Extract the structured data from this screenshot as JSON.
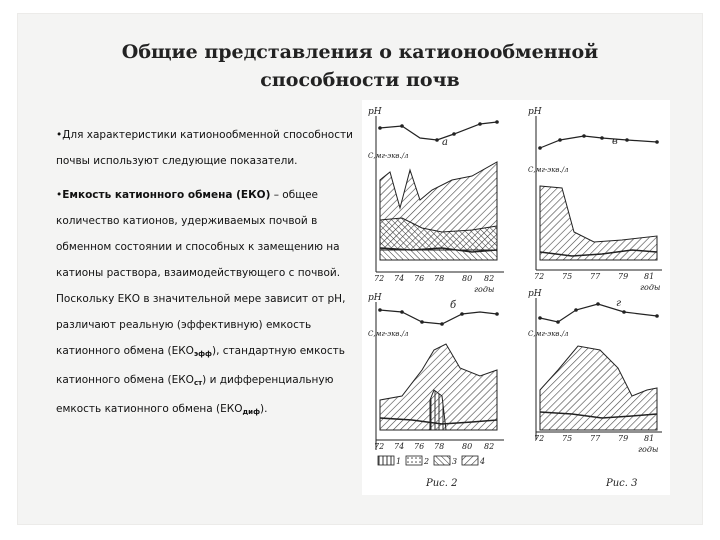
{
  "slide": {
    "title_line1": "Общие представления о катионообменной",
    "title_line2": "способности почв"
  },
  "content": {
    "para1": "Для характеристики катионообменной способности почвы используют следующие показатели.",
    "para2_bold": "Емкость катионного обмена (ЕКО)",
    "para2_a": " – общее количество катионов, удерживаемых почвой в обменном состоянии и способных к замещению на катионы раствора, взаимодействующего с почвой. Поскольку ЕКО в значительной мере зависит от рН, различают реальную (эффективную) емкость катионного обмена (",
    "eko_base1": "ЕКО",
    "eko_sub1": "эфф",
    "para2_b": "), стандартную емкость катионного обмена (",
    "eko_base2": "ЕКО",
    "eko_sub2": "ст",
    "para2_c": ") и дифференциальную емкость катионного обмена (",
    "eko_base3": "ЕКО",
    "eko_sub3": "диф",
    "para2_d": ")."
  },
  "figure": {
    "panel_a": "а",
    "panel_b": "б",
    "panel_v": "в",
    "panel_g": "г",
    "ph_label": "pH",
    "units_label": "С,мг-экв./л",
    "year_label": "годы",
    "fig2_caption": "Рис. 2",
    "fig3_caption": "Рис. 3",
    "legend_1": "1",
    "legend_2": "2",
    "legend_3": "3",
    "legend_4": "4",
    "years_left": [
      "72",
      "74",
      "76",
      "78",
      "80",
      "82"
    ],
    "years_right": [
      "72",
      "75",
      "77",
      "79",
      "81"
    ]
  }
}
